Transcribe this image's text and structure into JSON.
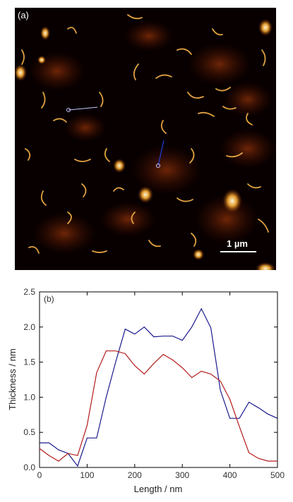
{
  "panel_a": {
    "label": "(a)",
    "scale_bar_label": "1 µm",
    "colors": {
      "background": "#080000",
      "flake_low": "#6b1f05",
      "flake_mid": "#c4670f",
      "flake_high": "#fff4d6",
      "profile_line_1": "#c8c8ff",
      "profile_line_2": "#2040e0"
    }
  },
  "chart_data": {
    "type": "line",
    "panel_label": "(b)",
    "xlabel": "Length / nm",
    "ylabel": "Thickness / nm",
    "xlim": [
      0,
      500
    ],
    "ylim": [
      0,
      2.5
    ],
    "xticks": [
      0,
      100,
      200,
      300,
      400,
      500
    ],
    "yticks": [
      0.0,
      0.5,
      1.0,
      1.5,
      2.0,
      2.5
    ],
    "ytick_labels": [
      "0.0",
      "0.5",
      "1.0",
      "1.5",
      "2.0",
      "2.5"
    ],
    "grid": false,
    "legend": "none",
    "series": [
      {
        "color": "#1a1a8c",
        "x": [
          0,
          20,
          40,
          60,
          80,
          100,
          120,
          140,
          160,
          180,
          200,
          220,
          240,
          260,
          280,
          300,
          320,
          340,
          360,
          380,
          400,
          420,
          440,
          460,
          480,
          500
        ],
        "y": [
          0.35,
          0.35,
          0.25,
          0.2,
          0.02,
          0.42,
          0.42,
          1.0,
          1.5,
          1.97,
          1.9,
          2.0,
          1.86,
          1.87,
          1.87,
          1.81,
          2.0,
          2.26,
          1.99,
          1.1,
          0.7,
          0.7,
          0.93,
          0.85,
          0.76,
          0.7
        ]
      },
      {
        "color": "#b31b1b",
        "x": [
          0,
          20,
          40,
          60,
          80,
          100,
          120,
          140,
          160,
          180,
          200,
          220,
          240,
          260,
          280,
          300,
          320,
          340,
          360,
          380,
          400,
          420,
          440,
          460,
          480,
          500
        ],
        "y": [
          0.27,
          0.17,
          0.09,
          0.2,
          0.17,
          0.6,
          1.35,
          1.66,
          1.66,
          1.62,
          1.45,
          1.33,
          1.48,
          1.61,
          1.53,
          1.42,
          1.28,
          1.37,
          1.33,
          1.23,
          0.97,
          0.58,
          0.21,
          0.13,
          0.09,
          0.09
        ]
      }
    ]
  }
}
